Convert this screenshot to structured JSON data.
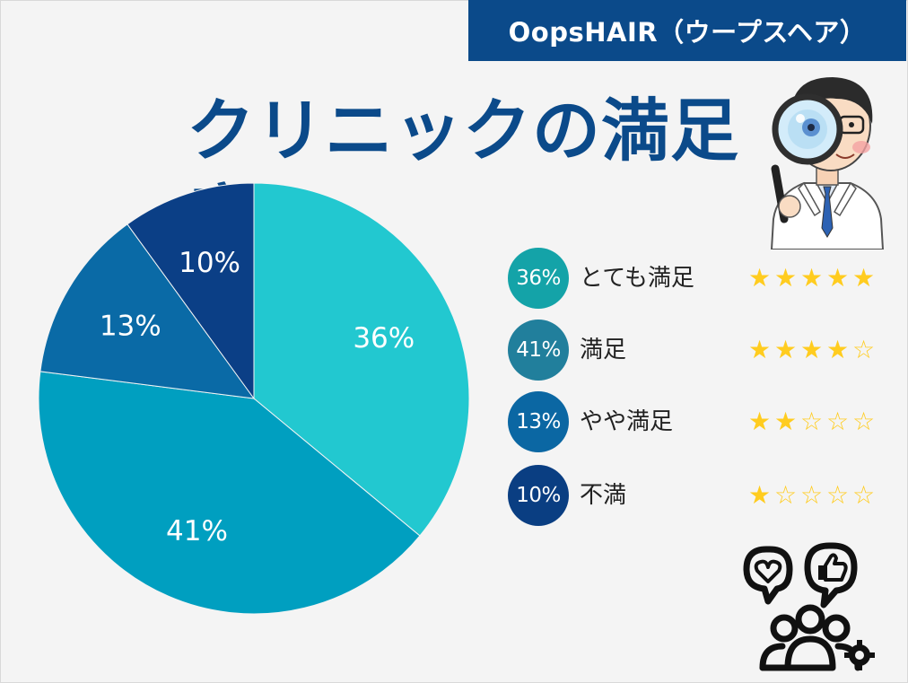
{
  "brand": "OopsHAIR（ウープスヘア）",
  "title": "クリニックの満足度",
  "chart_data": {
    "type": "pie",
    "slices": [
      {
        "label": "とても満足",
        "value": 36,
        "display": "36%",
        "color": "#22c8d0"
      },
      {
        "label": "満足",
        "value": 41,
        "display": "41%",
        "color": "#009fc0"
      },
      {
        "label": "やや満足",
        "value": 13,
        "display": "13%",
        "color": "#0a6aa6"
      },
      {
        "label": "不満",
        "value": 10,
        "display": "10%",
        "color": "#0b3f86"
      }
    ]
  },
  "legend": [
    {
      "pct": "36%",
      "label": "とても満足",
      "stars": 5,
      "color": "#14a3a8"
    },
    {
      "pct": "41%",
      "label": "満足",
      "stars": 4,
      "color": "#217f9c"
    },
    {
      "pct": "13%",
      "label": "やや満足",
      "stars": 2,
      "color": "#0b67a3"
    },
    {
      "pct": "10%",
      "label": "不満",
      "stars": 1,
      "color": "#0a3e82"
    }
  ],
  "stars_max": 5,
  "icons": {
    "doctor": "doctor-with-magnifier-icon",
    "feedback": "customer-feedback-icon"
  }
}
